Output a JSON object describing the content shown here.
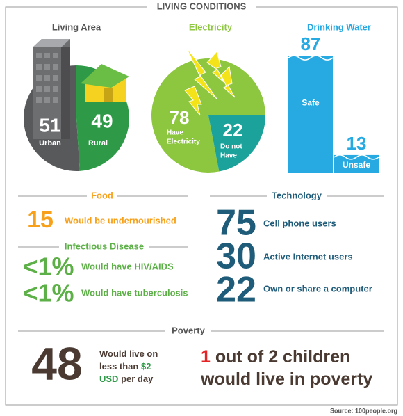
{
  "title": "LIVING CONDITIONS",
  "living_area": {
    "title": "Living Area",
    "slices": [
      {
        "value": 51,
        "label_lines": [
          "Urban"
        ],
        "color": "#58595b"
      },
      {
        "value": 49,
        "label_lines": [
          "Rural"
        ],
        "color": "#2e9a47"
      }
    ]
  },
  "electricity": {
    "title": "Electricity",
    "slices": [
      {
        "value": 78,
        "label_lines": [
          "Have",
          "Electricity"
        ],
        "color": "#8dc63f"
      },
      {
        "value": 22,
        "label_lines": [
          "Do not",
          "Have"
        ],
        "color": "#1ba39b"
      }
    ]
  },
  "drinking_water": {
    "title": "Drinking Water",
    "color": "#27aae1",
    "bars": [
      {
        "value": 87,
        "label": "Safe"
      },
      {
        "value": 13,
        "label": "Unsafe"
      }
    ]
  },
  "food": {
    "title": "Food",
    "value": 15,
    "text": "Would be undernourished"
  },
  "infectious_disease": {
    "title": "Infectious Disease",
    "items": [
      {
        "value": "<1%",
        "text": "Would have HIV/AIDS"
      },
      {
        "value": "<1%",
        "text": "Would have tuberculosis"
      }
    ]
  },
  "technology": {
    "title": "Technology",
    "items": [
      {
        "value": 75,
        "text": "Cell phone users"
      },
      {
        "value": 30,
        "text": "Active Internet users"
      },
      {
        "value": 22,
        "text": "Own or share a computer"
      }
    ]
  },
  "poverty": {
    "title": "Poverty",
    "value": 48,
    "text_lines": [
      [
        "Would live on"
      ],
      [
        "less than ",
        "$2"
      ],
      [
        "USD",
        " per day"
      ]
    ],
    "statement_lines": [
      [
        "1",
        " out of 2 children"
      ],
      [
        "would live in poverty"
      ]
    ]
  },
  "source": "Source: 100people.org"
}
